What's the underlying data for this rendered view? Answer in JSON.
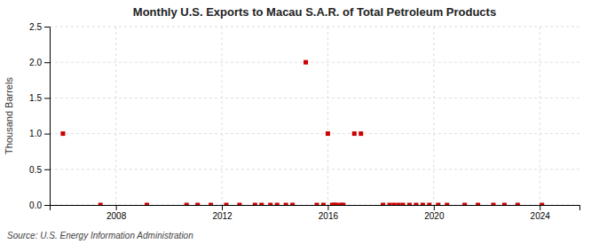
{
  "chart_data": {
    "type": "scatter",
    "title": "Monthly U.S. Exports to Macau S.A.R. of Total Petroleum Products",
    "y_label": "Thousand Barrels",
    "source": "Source: U.S. Energy Information Administration",
    "color": "#cc0000",
    "marker": "square",
    "grid": true,
    "xlim": [
      2005.5,
      2025.5
    ],
    "xticks": [
      2008,
      2012,
      2016,
      2020,
      2024
    ],
    "ylim": [
      0.0,
      2.5
    ],
    "yticks": [
      {
        "value": 0,
        "label": "0.0"
      },
      0.5,
      {
        "value": 1,
        "label": "1.0"
      },
      1.5,
      {
        "value": 2,
        "label": "2.0"
      },
      2.5
    ],
    "x": [
      2006,
      2007.4166666666667,
      2009.1666666666667,
      2010.6666666666667,
      2011.0833333333333,
      2011.5833333333333,
      2012.1666666666667,
      2012.6666666666667,
      2013.25,
      2013.5,
      2013.8333333333333,
      2014.0833333333333,
      2014.4166666666667,
      2014.6666666666667,
      2015.1666666666667,
      2015.5833333333333,
      2015.8333333333333,
      2016,
      2016.1666666666667,
      2016.25,
      2016.3333333333333,
      2016.5,
      2016.5833333333333,
      2017,
      2017.25,
      2018.0833333333333,
      2018.3333333333333,
      2018.5,
      2018.6666666666667,
      2018.8333333333333,
      2019.0833333333333,
      2019.3333333333333,
      2019.5833333333333,
      2019.8333333333333,
      2020.1666666666667,
      2020.5,
      2021.1666666666667,
      2021.6666666666667,
      2022.25,
      2022.6666666666667,
      2023.1666666666667,
      2024.0833333333333
    ],
    "values": [
      1.0,
      0.0,
      0.0,
      0.0,
      0.0,
      0.0,
      0.0,
      0.0,
      0.0,
      0.0,
      0.0,
      0.0,
      0.0,
      0.0,
      2.0,
      0.0,
      0.0,
      1.0,
      0.0,
      0.0,
      0.0,
      0.0,
      0.0,
      1.0,
      1.0,
      0.0,
      0.0,
      0.0,
      0.0,
      0.0,
      0.0,
      0.0,
      0.0,
      0.0,
      0.0,
      0.0,
      0.0,
      0.0,
      0.0,
      0.0,
      0.0,
      0.0
    ]
  }
}
